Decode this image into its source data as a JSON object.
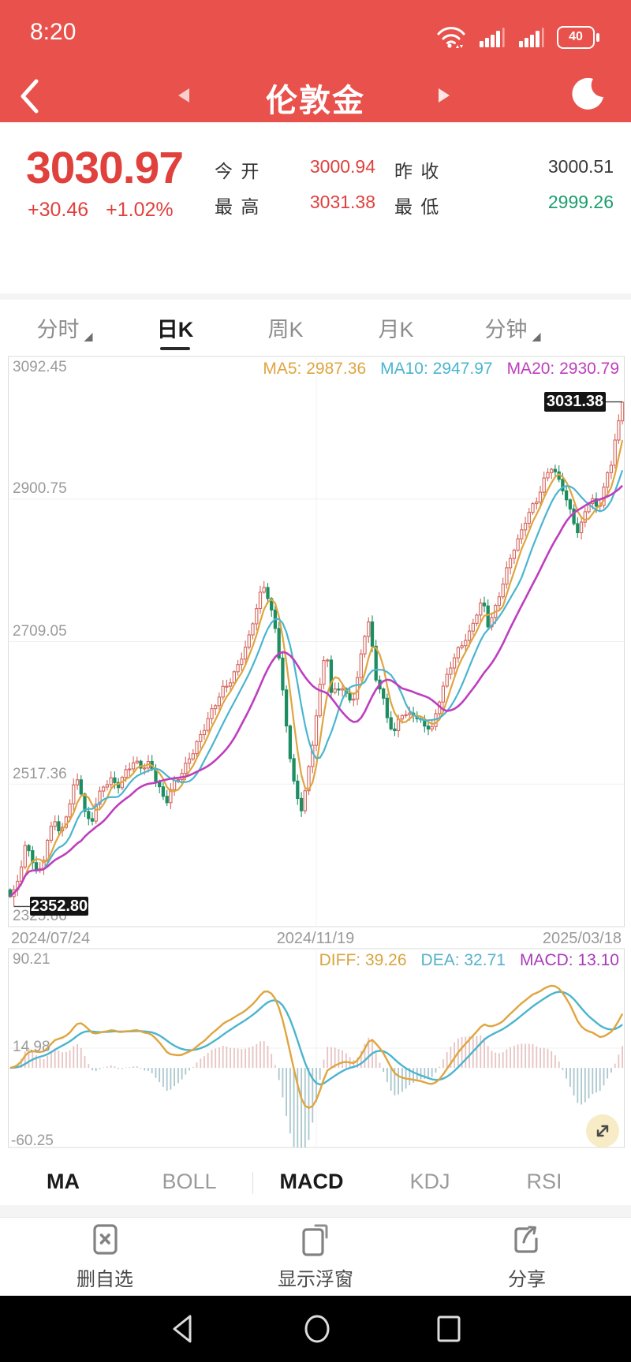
{
  "colors": {
    "header_bg": "#E8514C",
    "up_red": "#E0413D",
    "down_green": "#1B9E6E",
    "candle_up": "#D4655C",
    "candle_down": "#1E8E62",
    "ma5": "#DFA53F",
    "ma10": "#4AB5CE",
    "ma20": "#BE3EBE",
    "hist_pos": "#E7C3C3",
    "hist_neg": "#A9C7CE",
    "grid": "#F0F0F0",
    "panel_border": "#DBDBDB"
  },
  "status_bar": {
    "time": "8:20",
    "battery": "40"
  },
  "header": {
    "title": "伦敦金"
  },
  "quote": {
    "price": "3030.97",
    "change": "+30.46",
    "change_pct": "+1.02%",
    "stats": [
      {
        "label": "今 开",
        "value": "3000.94",
        "color": "red"
      },
      {
        "label": "昨 收",
        "value": "3000.51",
        "color": "dark"
      },
      {
        "label": "最 高",
        "value": "3031.38",
        "color": "red"
      },
      {
        "label": "最 低",
        "value": "2999.26",
        "color": "green"
      }
    ]
  },
  "period_tabs": [
    {
      "label": "分时",
      "dropdown": true,
      "active": false
    },
    {
      "label": "日K",
      "dropdown": false,
      "active": true
    },
    {
      "label": "周K",
      "dropdown": false,
      "active": false
    },
    {
      "label": "月K",
      "dropdown": false,
      "active": false
    },
    {
      "label": "分钟",
      "dropdown": true,
      "active": false
    }
  ],
  "chart_data": {
    "type": "candlestick",
    "y_axis_labels": [
      "3092.45",
      "2900.75",
      "2709.05",
      "2517.36",
      "2325.66"
    ],
    "ylim": [
      2325.66,
      3092.45
    ],
    "x_axis_labels": [
      "2024/07/24",
      "2024/11/19",
      "2025/03/18"
    ],
    "legend": [
      {
        "label": "MA5: 2987.36",
        "color": "#DFA53F"
      },
      {
        "label": "MA10: 2947.97",
        "color": "#4AB5CE"
      },
      {
        "label": "MA20: 2930.79",
        "color": "#BE3EBE"
      }
    ],
    "marked_high": {
      "text": "3031.38",
      "value": 3031.38
    },
    "marked_low": {
      "text": "2352.80",
      "value": 2352.8
    },
    "num_candles": 165,
    "last_close": 3030.97,
    "close_keypoints": [
      [
        10,
        2382
      ],
      [
        14,
        2360
      ],
      [
        20,
        2378
      ],
      [
        26,
        2400
      ],
      [
        33,
        2436
      ],
      [
        40,
        2420
      ],
      [
        48,
        2396
      ],
      [
        55,
        2418
      ],
      [
        62,
        2450
      ],
      [
        70,
        2468
      ],
      [
        77,
        2445
      ],
      [
        85,
        2478
      ],
      [
        93,
        2515
      ],
      [
        100,
        2528
      ],
      [
        107,
        2482
      ],
      [
        115,
        2460
      ],
      [
        122,
        2490
      ],
      [
        130,
        2512
      ],
      [
        140,
        2525
      ],
      [
        150,
        2518
      ],
      [
        160,
        2535
      ],
      [
        170,
        2545
      ],
      [
        180,
        2538
      ],
      [
        190,
        2548
      ],
      [
        200,
        2520
      ],
      [
        210,
        2490
      ],
      [
        218,
        2512
      ],
      [
        226,
        2524
      ],
      [
        234,
        2540
      ],
      [
        242,
        2558
      ],
      [
        250,
        2575
      ],
      [
        258,
        2590
      ],
      [
        266,
        2608
      ],
      [
        274,
        2625
      ],
      [
        282,
        2645
      ],
      [
        290,
        2655
      ],
      [
        298,
        2670
      ],
      [
        306,
        2688
      ],
      [
        314,
        2705
      ],
      [
        322,
        2740
      ],
      [
        330,
        2772
      ],
      [
        336,
        2788
      ],
      [
        342,
        2760
      ],
      [
        348,
        2735
      ],
      [
        355,
        2680
      ],
      [
        362,
        2600
      ],
      [
        370,
        2535
      ],
      [
        377,
        2495
      ],
      [
        382,
        2484
      ],
      [
        388,
        2520
      ],
      [
        395,
        2560
      ],
      [
        402,
        2622
      ],
      [
        408,
        2665
      ],
      [
        414,
        2700
      ],
      [
        419,
        2638
      ],
      [
        426,
        2642
      ],
      [
        433,
        2652
      ],
      [
        440,
        2636
      ],
      [
        447,
        2630
      ],
      [
        454,
        2662
      ],
      [
        461,
        2712
      ],
      [
        468,
        2735
      ],
      [
        476,
        2662
      ],
      [
        484,
        2642
      ],
      [
        492,
        2605
      ],
      [
        500,
        2585
      ],
      [
        508,
        2612
      ],
      [
        516,
        2606
      ],
      [
        524,
        2612
      ],
      [
        532,
        2604
      ],
      [
        540,
        2598
      ],
      [
        548,
        2592
      ],
      [
        556,
        2625
      ],
      [
        564,
        2652
      ],
      [
        572,
        2678
      ],
      [
        580,
        2698
      ],
      [
        588,
        2712
      ],
      [
        596,
        2722
      ],
      [
        604,
        2745
      ],
      [
        612,
        2762
      ],
      [
        619,
        2730
      ],
      [
        626,
        2748
      ],
      [
        634,
        2778
      ],
      [
        642,
        2805
      ],
      [
        650,
        2830
      ],
      [
        658,
        2845
      ],
      [
        666,
        2870
      ],
      [
        674,
        2890
      ],
      [
        682,
        2905
      ],
      [
        690,
        2928
      ],
      [
        698,
        2945
      ],
      [
        705,
        2930
      ],
      [
        712,
        2918
      ],
      [
        719,
        2895
      ],
      [
        726,
        2878
      ],
      [
        732,
        2858
      ],
      [
        738,
        2870
      ],
      [
        744,
        2895
      ],
      [
        750,
        2898
      ],
      [
        756,
        2888
      ],
      [
        762,
        2895
      ],
      [
        768,
        2928
      ],
      [
        774,
        2945
      ],
      [
        780,
        2985
      ],
      [
        786,
        3012
      ],
      [
        790,
        3031
      ]
    ],
    "macd": {
      "y_labels": [
        "90.21",
        "14.98",
        "-60.25"
      ],
      "ylim": [
        -60.25,
        90.21
      ],
      "legend": [
        {
          "label": "DIFF: 39.26",
          "color": "#D9A43F"
        },
        {
          "label": "DEA: 32.71",
          "color": "#55B1C9"
        },
        {
          "label": "MACD: 13.10",
          "color": "#A93BB8"
        }
      ],
      "params": [
        12,
        26,
        9
      ],
      "hist_scale": 2
    }
  },
  "indicator_tabs": [
    {
      "label": "MA",
      "active": true
    },
    {
      "label": "BOLL",
      "active": false
    },
    {
      "label": "MACD",
      "active": true
    },
    {
      "label": "KDJ",
      "active": false
    },
    {
      "label": "RSI",
      "active": false
    }
  ],
  "toolbar": [
    {
      "label": "删自选",
      "icon": "delete-watchlist-icon"
    },
    {
      "label": "显示浮窗",
      "icon": "floating-window-icon"
    },
    {
      "label": "分享",
      "icon": "share-icon"
    }
  ],
  "nav_bar": {
    "icons": [
      "back-icon",
      "home-icon",
      "recents-icon"
    ]
  }
}
